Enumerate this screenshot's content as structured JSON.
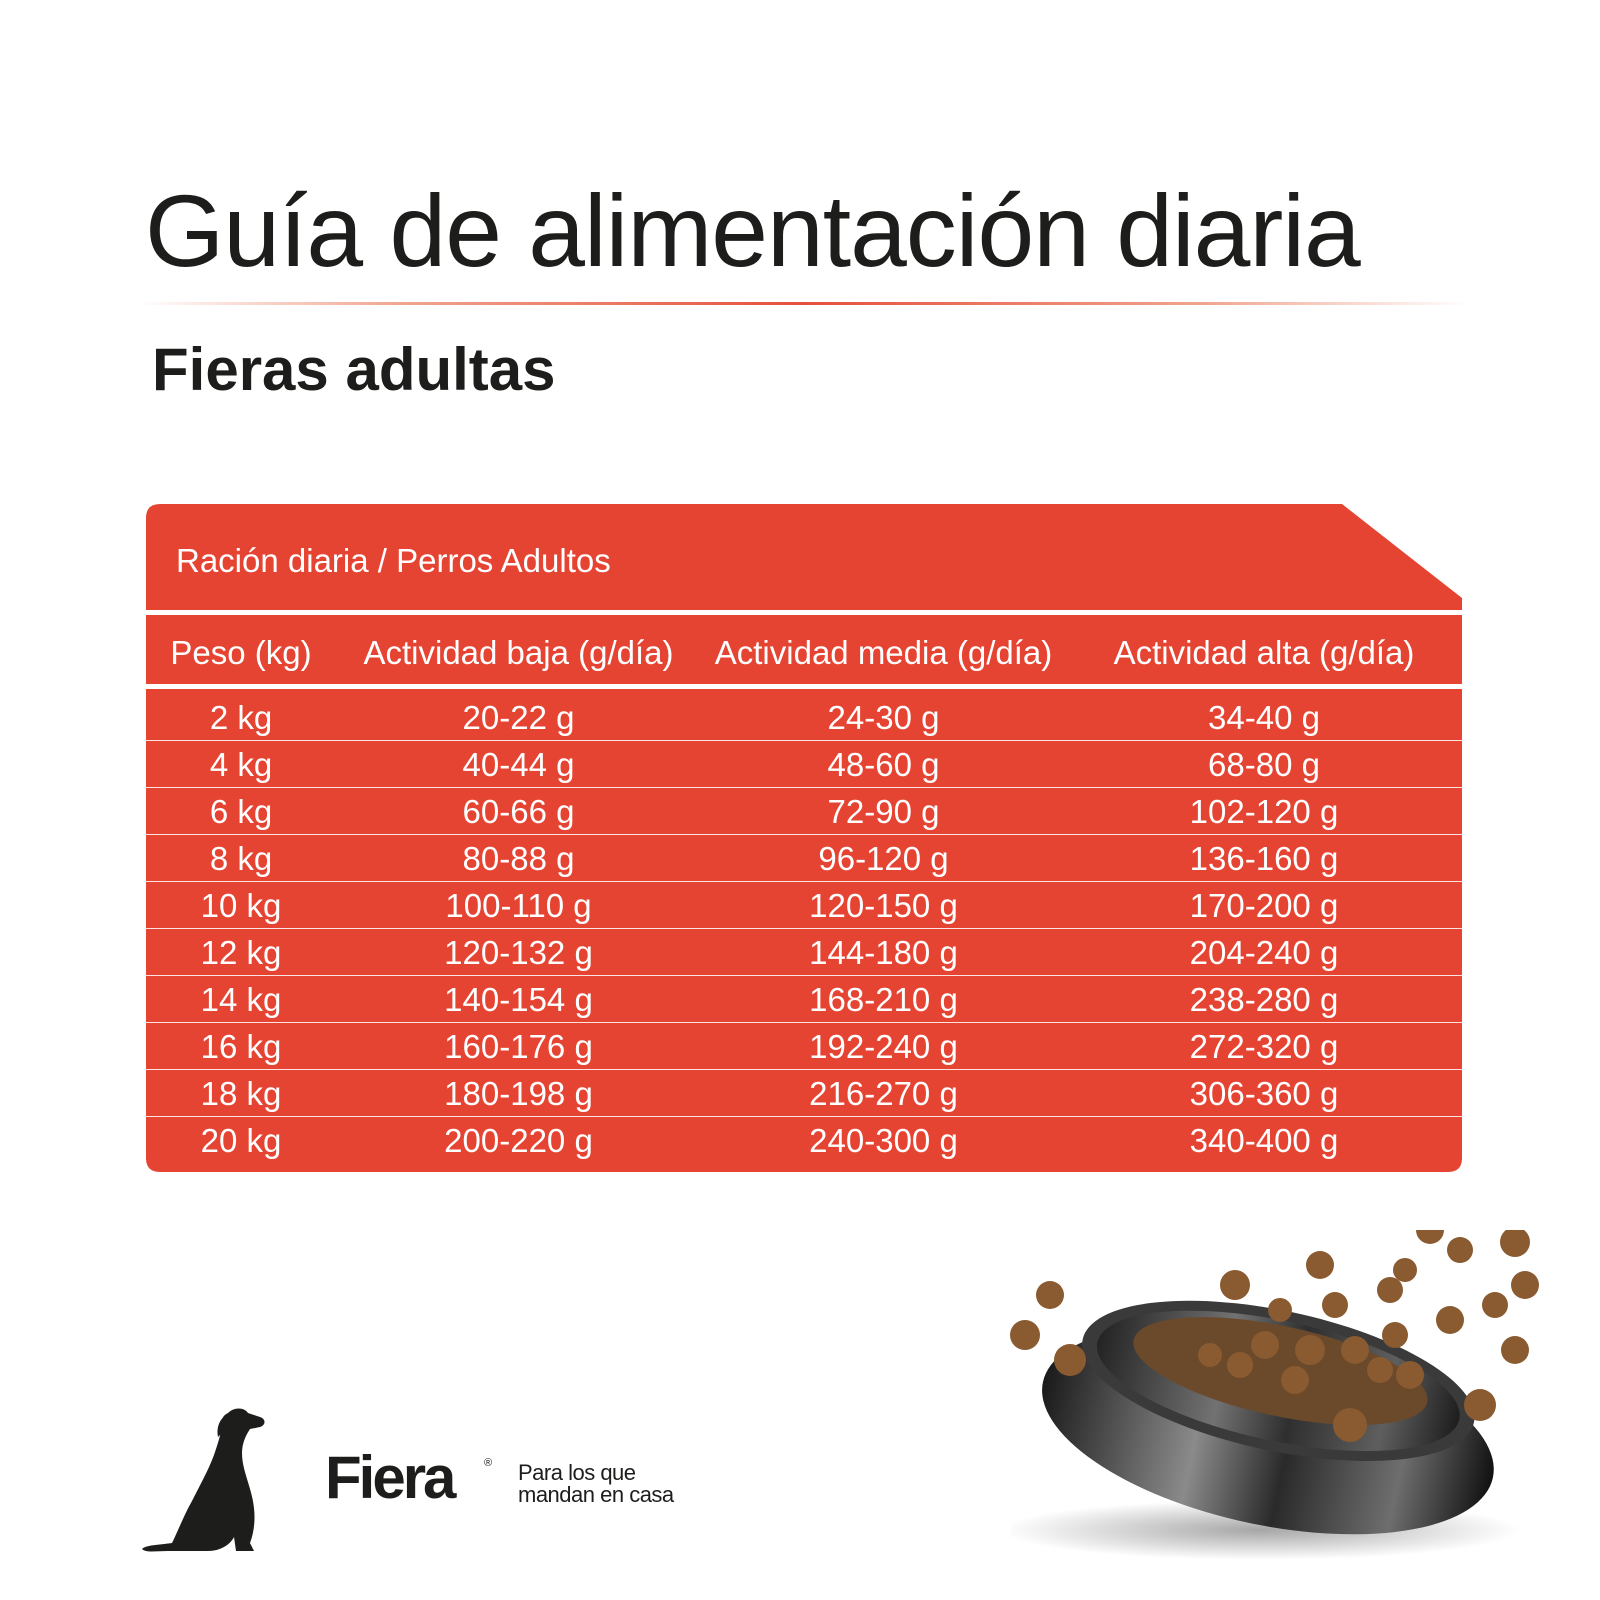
{
  "header": {
    "title": "Guía de alimentación diaria",
    "subtitle": "Fieras adultas"
  },
  "table": {
    "caption": "Ración diaria / Perros Adultos",
    "accent_color": "#e64433",
    "columns": [
      "Peso (kg)",
      "Actividad baja (g/día)",
      "Actividad media (g/día)",
      "Actividad alta (g/día)"
    ],
    "rows": [
      [
        "2 kg",
        "20-22 g",
        "24-30 g",
        "34-40 g"
      ],
      [
        "4 kg",
        "40-44 g",
        "48-60 g",
        "68-80 g"
      ],
      [
        "6 kg",
        "60-66 g",
        "72-90 g",
        "102-120 g"
      ],
      [
        "8 kg",
        "80-88 g",
        "96-120 g",
        "136-160 g"
      ],
      [
        "10 kg",
        "100-110 g",
        "120-150 g",
        "170-200 g"
      ],
      [
        "12 kg",
        "120-132 g",
        "144-180 g",
        "204-240 g"
      ],
      [
        "14 kg",
        "140-154 g",
        "168-210 g",
        "238-280 g"
      ],
      [
        "16 kg",
        "160-176 g",
        "192-240 g",
        "272-320 g"
      ],
      [
        "18 kg",
        "180-198 g",
        "216-270 g",
        "306-360 g"
      ],
      [
        "20 kg",
        "200-220 g",
        "240-300 g",
        "340-400 g"
      ]
    ]
  },
  "footer": {
    "brand": "Fiera",
    "registered": "®",
    "tagline_line1": "Para los que",
    "tagline_line2": "mandan en casa",
    "dog_icon": "sitting-dog-silhouette-icon",
    "bowl_image": "food-bowl-with-kibble-image"
  }
}
